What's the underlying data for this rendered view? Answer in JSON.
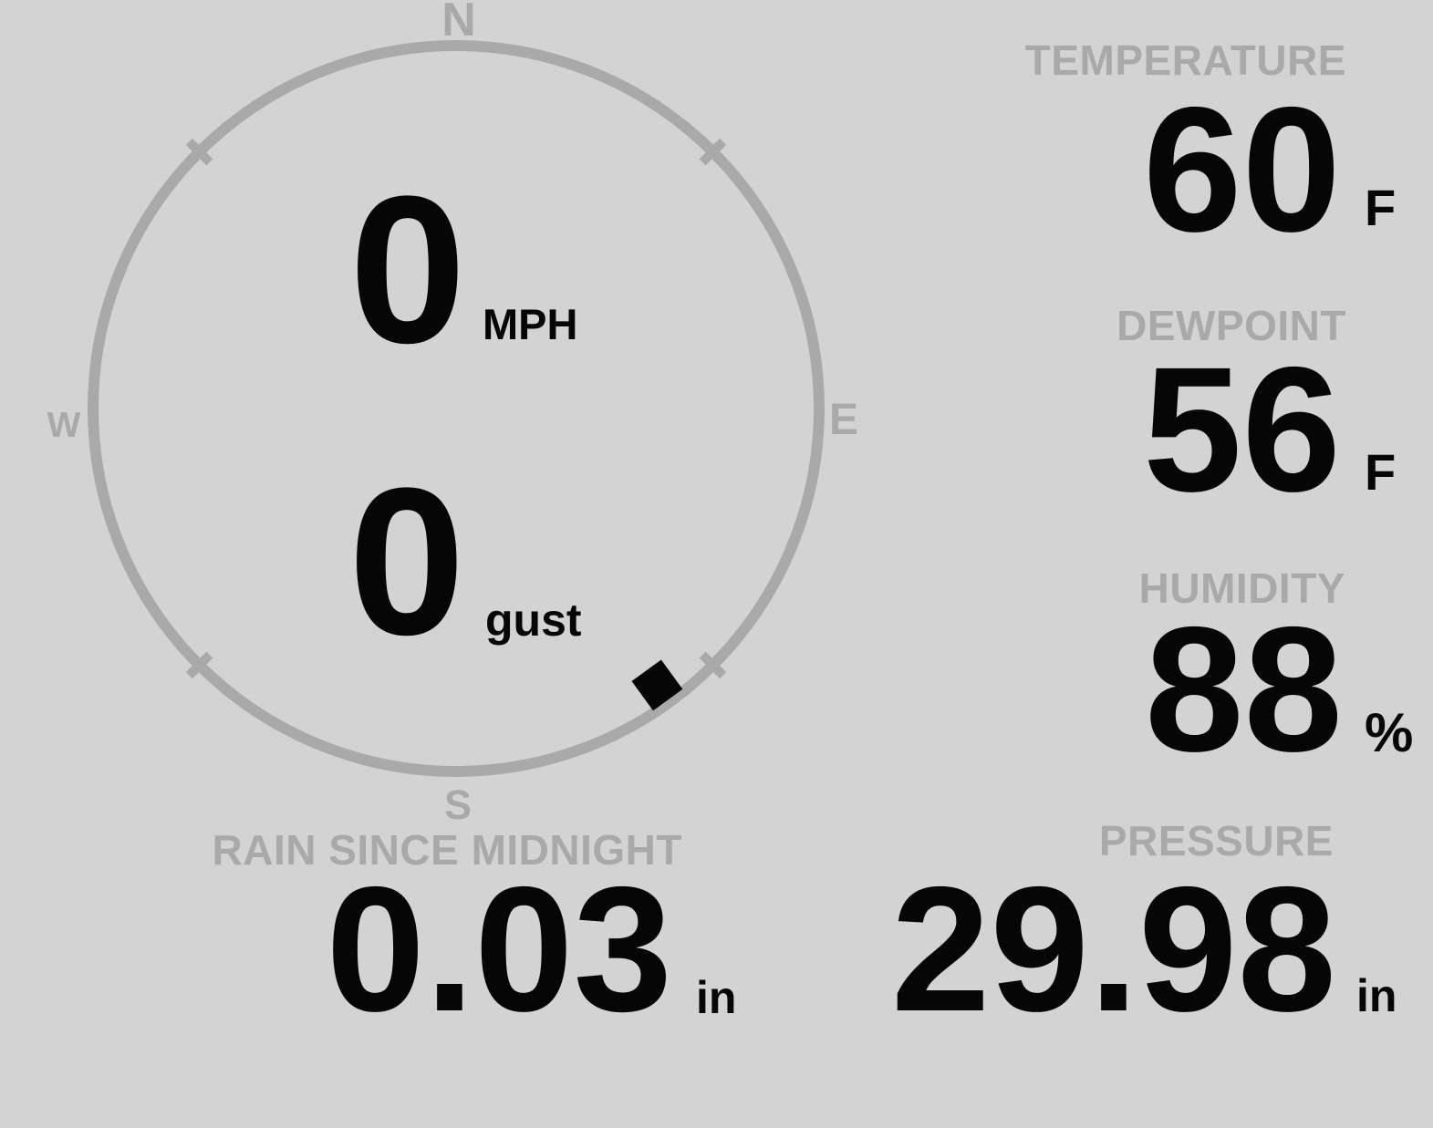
{
  "theme": {
    "background": "#d3d3d3",
    "muted_gray": "#a9a9a9",
    "ink_black": "#060606"
  },
  "wind": {
    "compass": {
      "north": "N",
      "east": "E",
      "south": "S",
      "west": "W"
    },
    "speed": {
      "value": "0",
      "unit": "MPH"
    },
    "gust": {
      "value": "0",
      "unit": "gust"
    },
    "direction_degrees": 144
  },
  "stats": {
    "temperature": {
      "label": "TEMPERATURE",
      "value": "60",
      "unit": "F"
    },
    "dewpoint": {
      "label": "DEWPOINT",
      "value": "56",
      "unit": "F"
    },
    "humidity": {
      "label": "HUMIDITY",
      "value": "88",
      "unit": "%"
    },
    "rain": {
      "label": "RAIN SINCE MIDNIGHT",
      "value": "0.03",
      "unit": "in"
    },
    "pressure": {
      "label": "PRESSURE",
      "value": "29.98",
      "unit": "in"
    }
  }
}
